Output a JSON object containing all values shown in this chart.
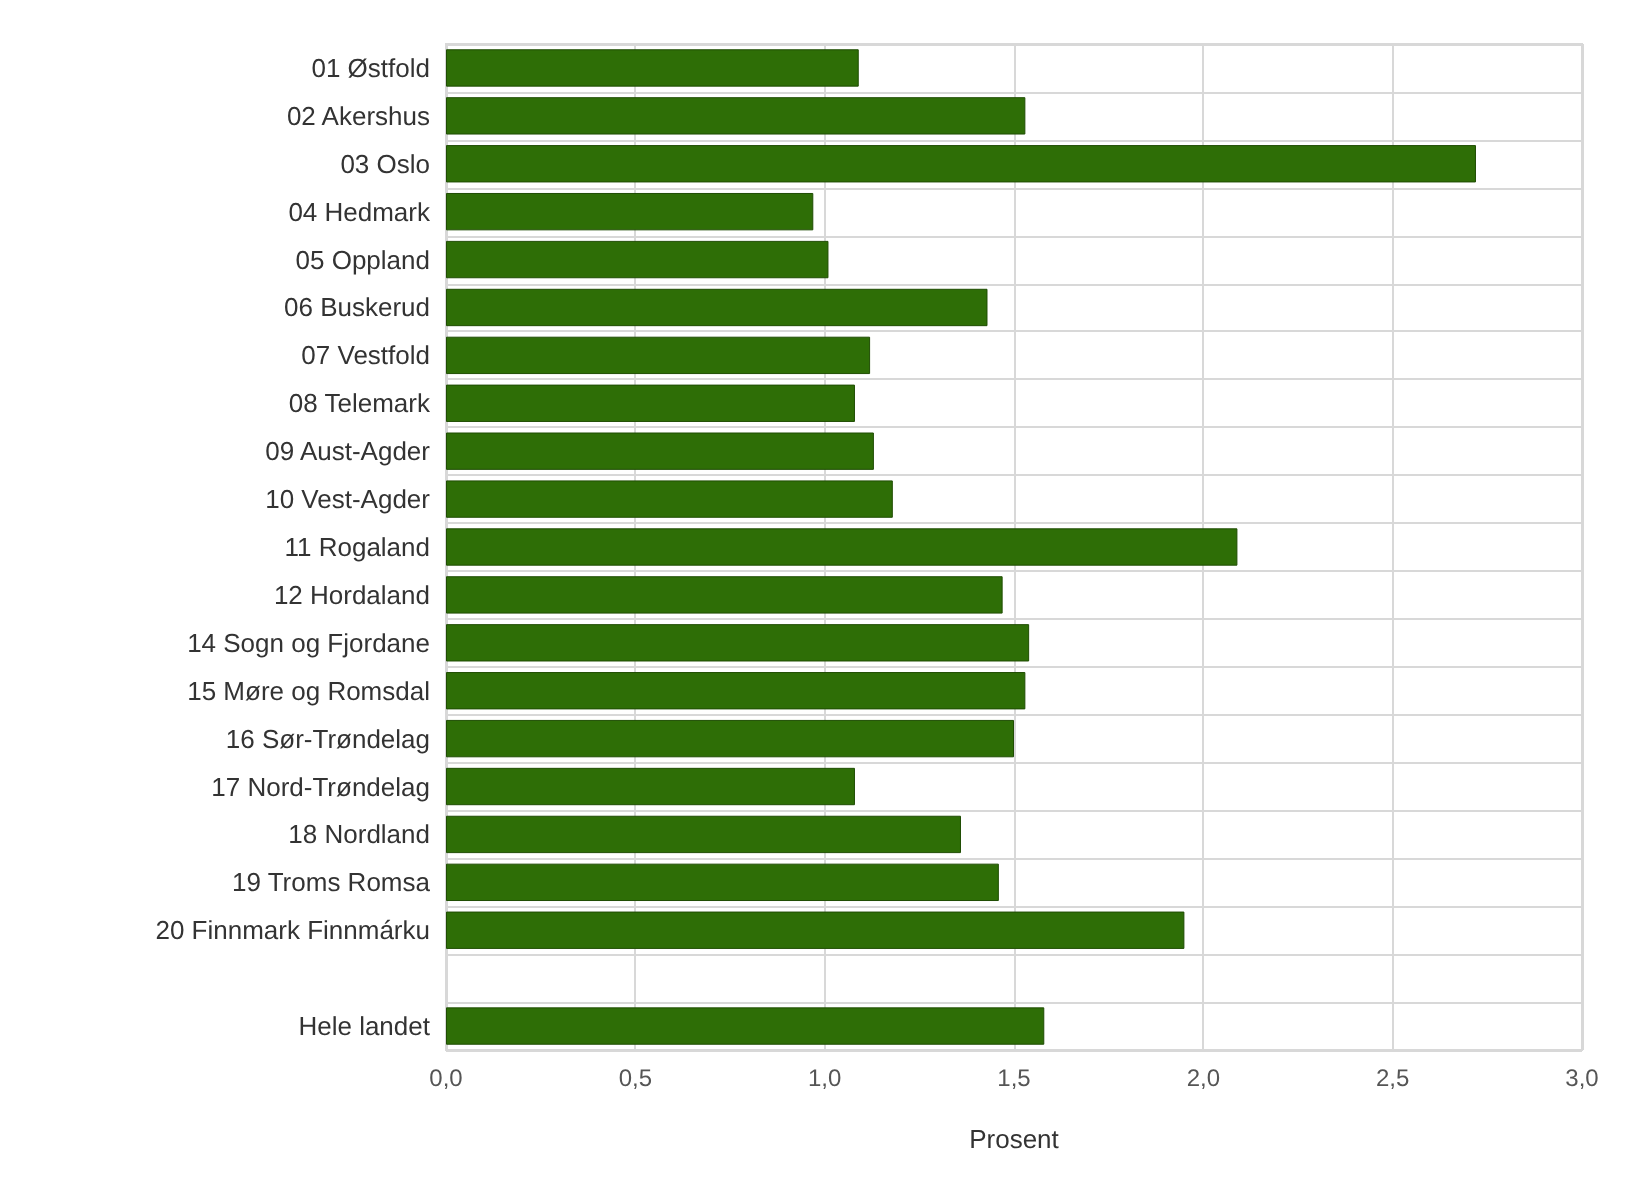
{
  "chart_data": {
    "type": "bar",
    "orientation": "horizontal",
    "xlabel": "Prosent",
    "categories": [
      "01 Østfold",
      "02 Akershus",
      "03 Oslo",
      "04 Hedmark",
      "05 Oppland",
      "06 Buskerud",
      "07 Vestfold",
      "08 Telemark",
      "09 Aust-Agder",
      "10 Vest-Agder",
      "11 Rogaland",
      "12 Hordaland",
      "14 Sogn og Fjordane",
      "15 Møre og Romsdal",
      "16 Sør-Trøndelag",
      "17 Nord-Trøndelag",
      "18 Nordland",
      "19 Troms Romsa",
      "20 Finnmark Finnmárku",
      null,
      "Hele landet"
    ],
    "values": [
      1.09,
      1.53,
      2.72,
      0.97,
      1.01,
      1.43,
      1.12,
      1.08,
      1.13,
      1.18,
      2.09,
      1.47,
      1.54,
      1.53,
      1.5,
      1.08,
      1.36,
      1.46,
      1.95,
      null,
      1.58
    ],
    "color": "#2e6e06",
    "xlim": [
      0,
      3
    ],
    "xticks": [
      {
        "value": 0,
        "label": "0,0"
      },
      {
        "value": 0.5,
        "label": "0,5"
      },
      {
        "value": 1,
        "label": "1,0"
      },
      {
        "value": 1.5,
        "label": "1,5"
      },
      {
        "value": 2,
        "label": "2,0"
      },
      {
        "value": 2.5,
        "label": "2,5"
      },
      {
        "value": 3,
        "label": "3,0"
      }
    ],
    "grid": true
  }
}
